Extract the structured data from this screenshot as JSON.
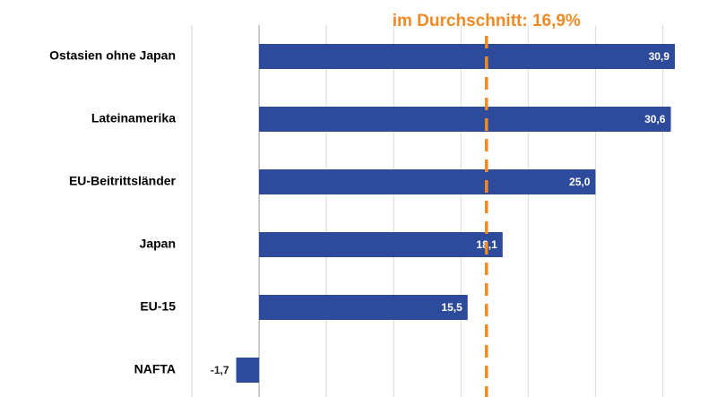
{
  "chart_data": {
    "type": "barh",
    "categories": [
      "Ostasien ohne Japan",
      "Lateinamerika",
      "EU-Beitrittsländer",
      "Japan",
      "EU-15",
      "NAFTA"
    ],
    "values": [
      30.9,
      30.6,
      25.0,
      18.1,
      15.5,
      -1.7
    ],
    "value_labels": [
      "30,9",
      "30,6",
      "25,0",
      "18,1",
      "15,5",
      "-1,7"
    ],
    "color": "#2e4a9a",
    "xlim": [
      -5,
      34.7
    ],
    "xticks": [
      -5,
      0,
      5,
      10,
      15,
      20,
      25,
      30
    ],
    "grid": true,
    "average": {
      "value": 16.9,
      "label": "im Durchschnitt: 16,9%",
      "color": "#f08a24"
    }
  }
}
